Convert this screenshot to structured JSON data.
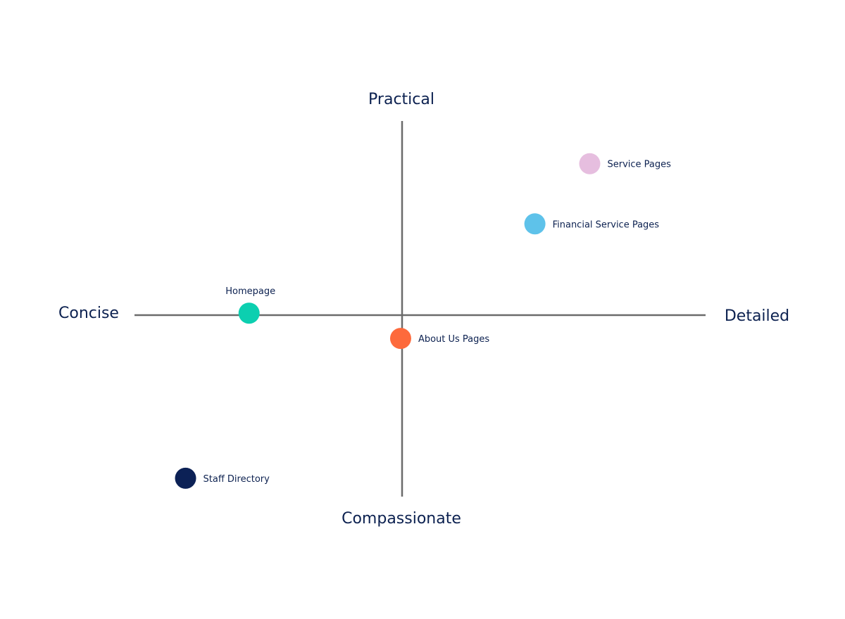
{
  "chart_data": {
    "type": "scatter",
    "title": "",
    "axes": {
      "x": {
        "negative_label": "Concise",
        "positive_label": "Detailed",
        "range": [
          -1,
          1
        ]
      },
      "y": {
        "negative_label": "Compassionate",
        "positive_label": "Practical",
        "range": [
          -1,
          1
        ]
      }
    },
    "grid": false,
    "legend": "none",
    "points": [
      {
        "label": "Service Pages",
        "x": 0.65,
        "y": 0.78,
        "color": "#e6bedf",
        "label_position": "right"
      },
      {
        "label": "Financial Service Pages",
        "x": 0.46,
        "y": 0.47,
        "color": "#5ec2ea",
        "label_position": "right"
      },
      {
        "label": "Homepage",
        "x": -0.53,
        "y": 0.01,
        "color": "#0ccfb0",
        "label_position": "above"
      },
      {
        "label": "About Us Pages",
        "x": -0.005,
        "y": -0.12,
        "color": "#fd6a3c",
        "label_position": "right"
      },
      {
        "label": "Staff Directory",
        "x": -0.75,
        "y": -0.84,
        "color": "#0c2156",
        "label_position": "right"
      }
    ]
  }
}
